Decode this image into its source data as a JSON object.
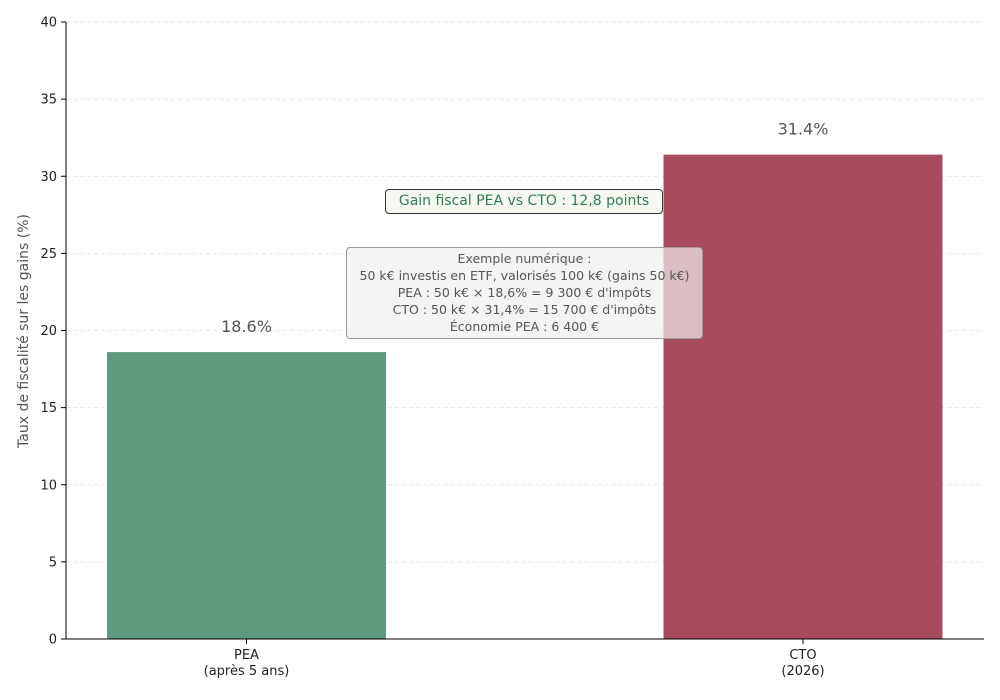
{
  "chart_data": {
    "type": "bar",
    "categories": [
      "PEA\n(après 5 ans)",
      "CTO\n(2026)"
    ],
    "values": [
      18.6,
      31.4
    ],
    "data_labels": [
      "18.6%",
      "31.4%"
    ],
    "colors": [
      "#5f9a7f",
      "#a94b5e"
    ],
    "title": "",
    "xlabel": "",
    "ylabel": "Taux de fiscalité sur les gains (%)",
    "ylim": [
      0,
      40
    ],
    "yticks": [
      0,
      5,
      10,
      15,
      20,
      25,
      30,
      35,
      40
    ],
    "grid": "horizontal dashed",
    "annotations": {
      "gain": "Gain fiscal PEA vs CTO : 12,8 points",
      "gain_color": "#2e7d55",
      "example": [
        "Exemple numérique :",
        "50 k€ investis en ETF, valorisés 100 k€ (gains 50 k€)",
        "PEA : 50 k€ × 18,6% = 9 300 € d'impôts",
        "CTO : 50 k€ × 31,4% = 15 700 € d'impôts",
        "Économie PEA : 6 400 €"
      ]
    }
  }
}
